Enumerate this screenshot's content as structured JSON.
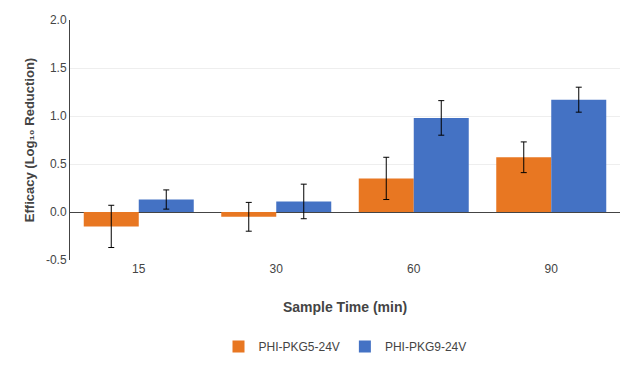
{
  "chart_data": {
    "type": "bar",
    "xlabel": "Sample Time (min)",
    "ylabel": "Efficacy (Log₁₀ Reduction)",
    "categories": [
      "15",
      "30",
      "60",
      "90"
    ],
    "series": [
      {
        "name": "PHI-PKG5-24V",
        "color": "#E87722",
        "values": [
          -0.15,
          -0.05,
          0.35,
          0.57
        ],
        "errors": [
          0.22,
          0.15,
          0.22,
          0.16
        ]
      },
      {
        "name": "PHI-PKG9-24V",
        "color": "#4472C4",
        "values": [
          0.13,
          0.11,
          0.98,
          1.17
        ],
        "errors": [
          0.1,
          0.18,
          0.18,
          0.13
        ]
      }
    ],
    "ylim": [
      -0.5,
      2.0
    ],
    "yticks": [
      -0.5,
      {
        "value": 0,
        "label": "0.0"
      },
      0.5,
      {
        "value": 1,
        "label": "1.0"
      },
      1.5,
      {
        "value": 2,
        "label": "2.0"
      }
    ],
    "grid": true,
    "legend": "bottom"
  }
}
